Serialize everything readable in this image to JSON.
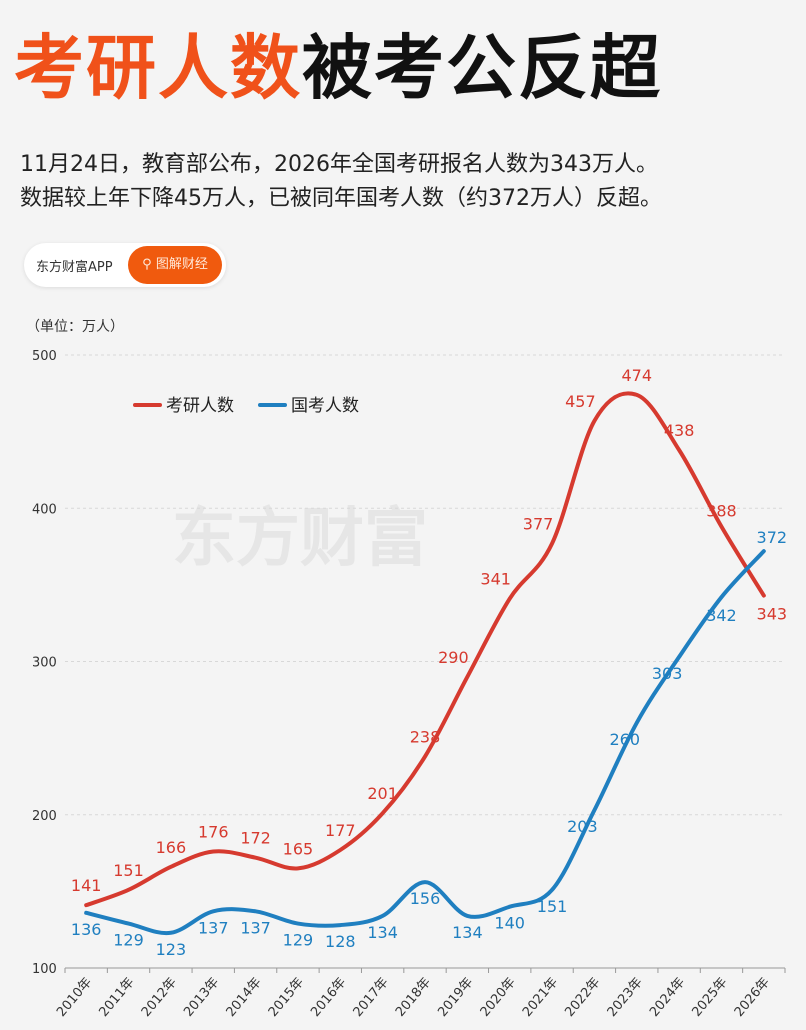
{
  "title": {
    "highlight": "考研人数",
    "rest": "被考公反超"
  },
  "subtitle": [
    "11月24日，教育部公布，2026年全国考研报名人数为343万人。",
    "数据较上年下降45万人，已被同年国考人数（约372万人）反超。"
  ],
  "badge": {
    "source": "东方财富APP",
    "button": "图解财经",
    "icon": "search-icon"
  },
  "watermark": "东方财富",
  "chart_data": {
    "type": "line",
    "unit_label": "（单位：万人）",
    "categories": [
      "2010年",
      "2011年",
      "2012年",
      "2013年",
      "2014年",
      "2015年",
      "2016年",
      "2017年",
      "2018年",
      "2019年",
      "2020年",
      "2021年",
      "2022年",
      "2023年",
      "2024年",
      "2025年",
      "2026年"
    ],
    "ylim": [
      100,
      500
    ],
    "yticks": [
      100,
      200,
      300,
      400,
      500
    ],
    "grid": true,
    "legend": "top-left",
    "series": [
      {
        "name": "考研人数",
        "color": "#d63a2f",
        "values": [
          141,
          151,
          166,
          176,
          172,
          165,
          177,
          201,
          238,
          290,
          341,
          377,
          457,
          474,
          438,
          388,
          343
        ]
      },
      {
        "name": "国考人数",
        "color": "#1f7fc0",
        "values": [
          136,
          129,
          123,
          137,
          137,
          129,
          128,
          134,
          156,
          134,
          140,
          151,
          203,
          260,
          303,
          342,
          372
        ]
      }
    ]
  }
}
